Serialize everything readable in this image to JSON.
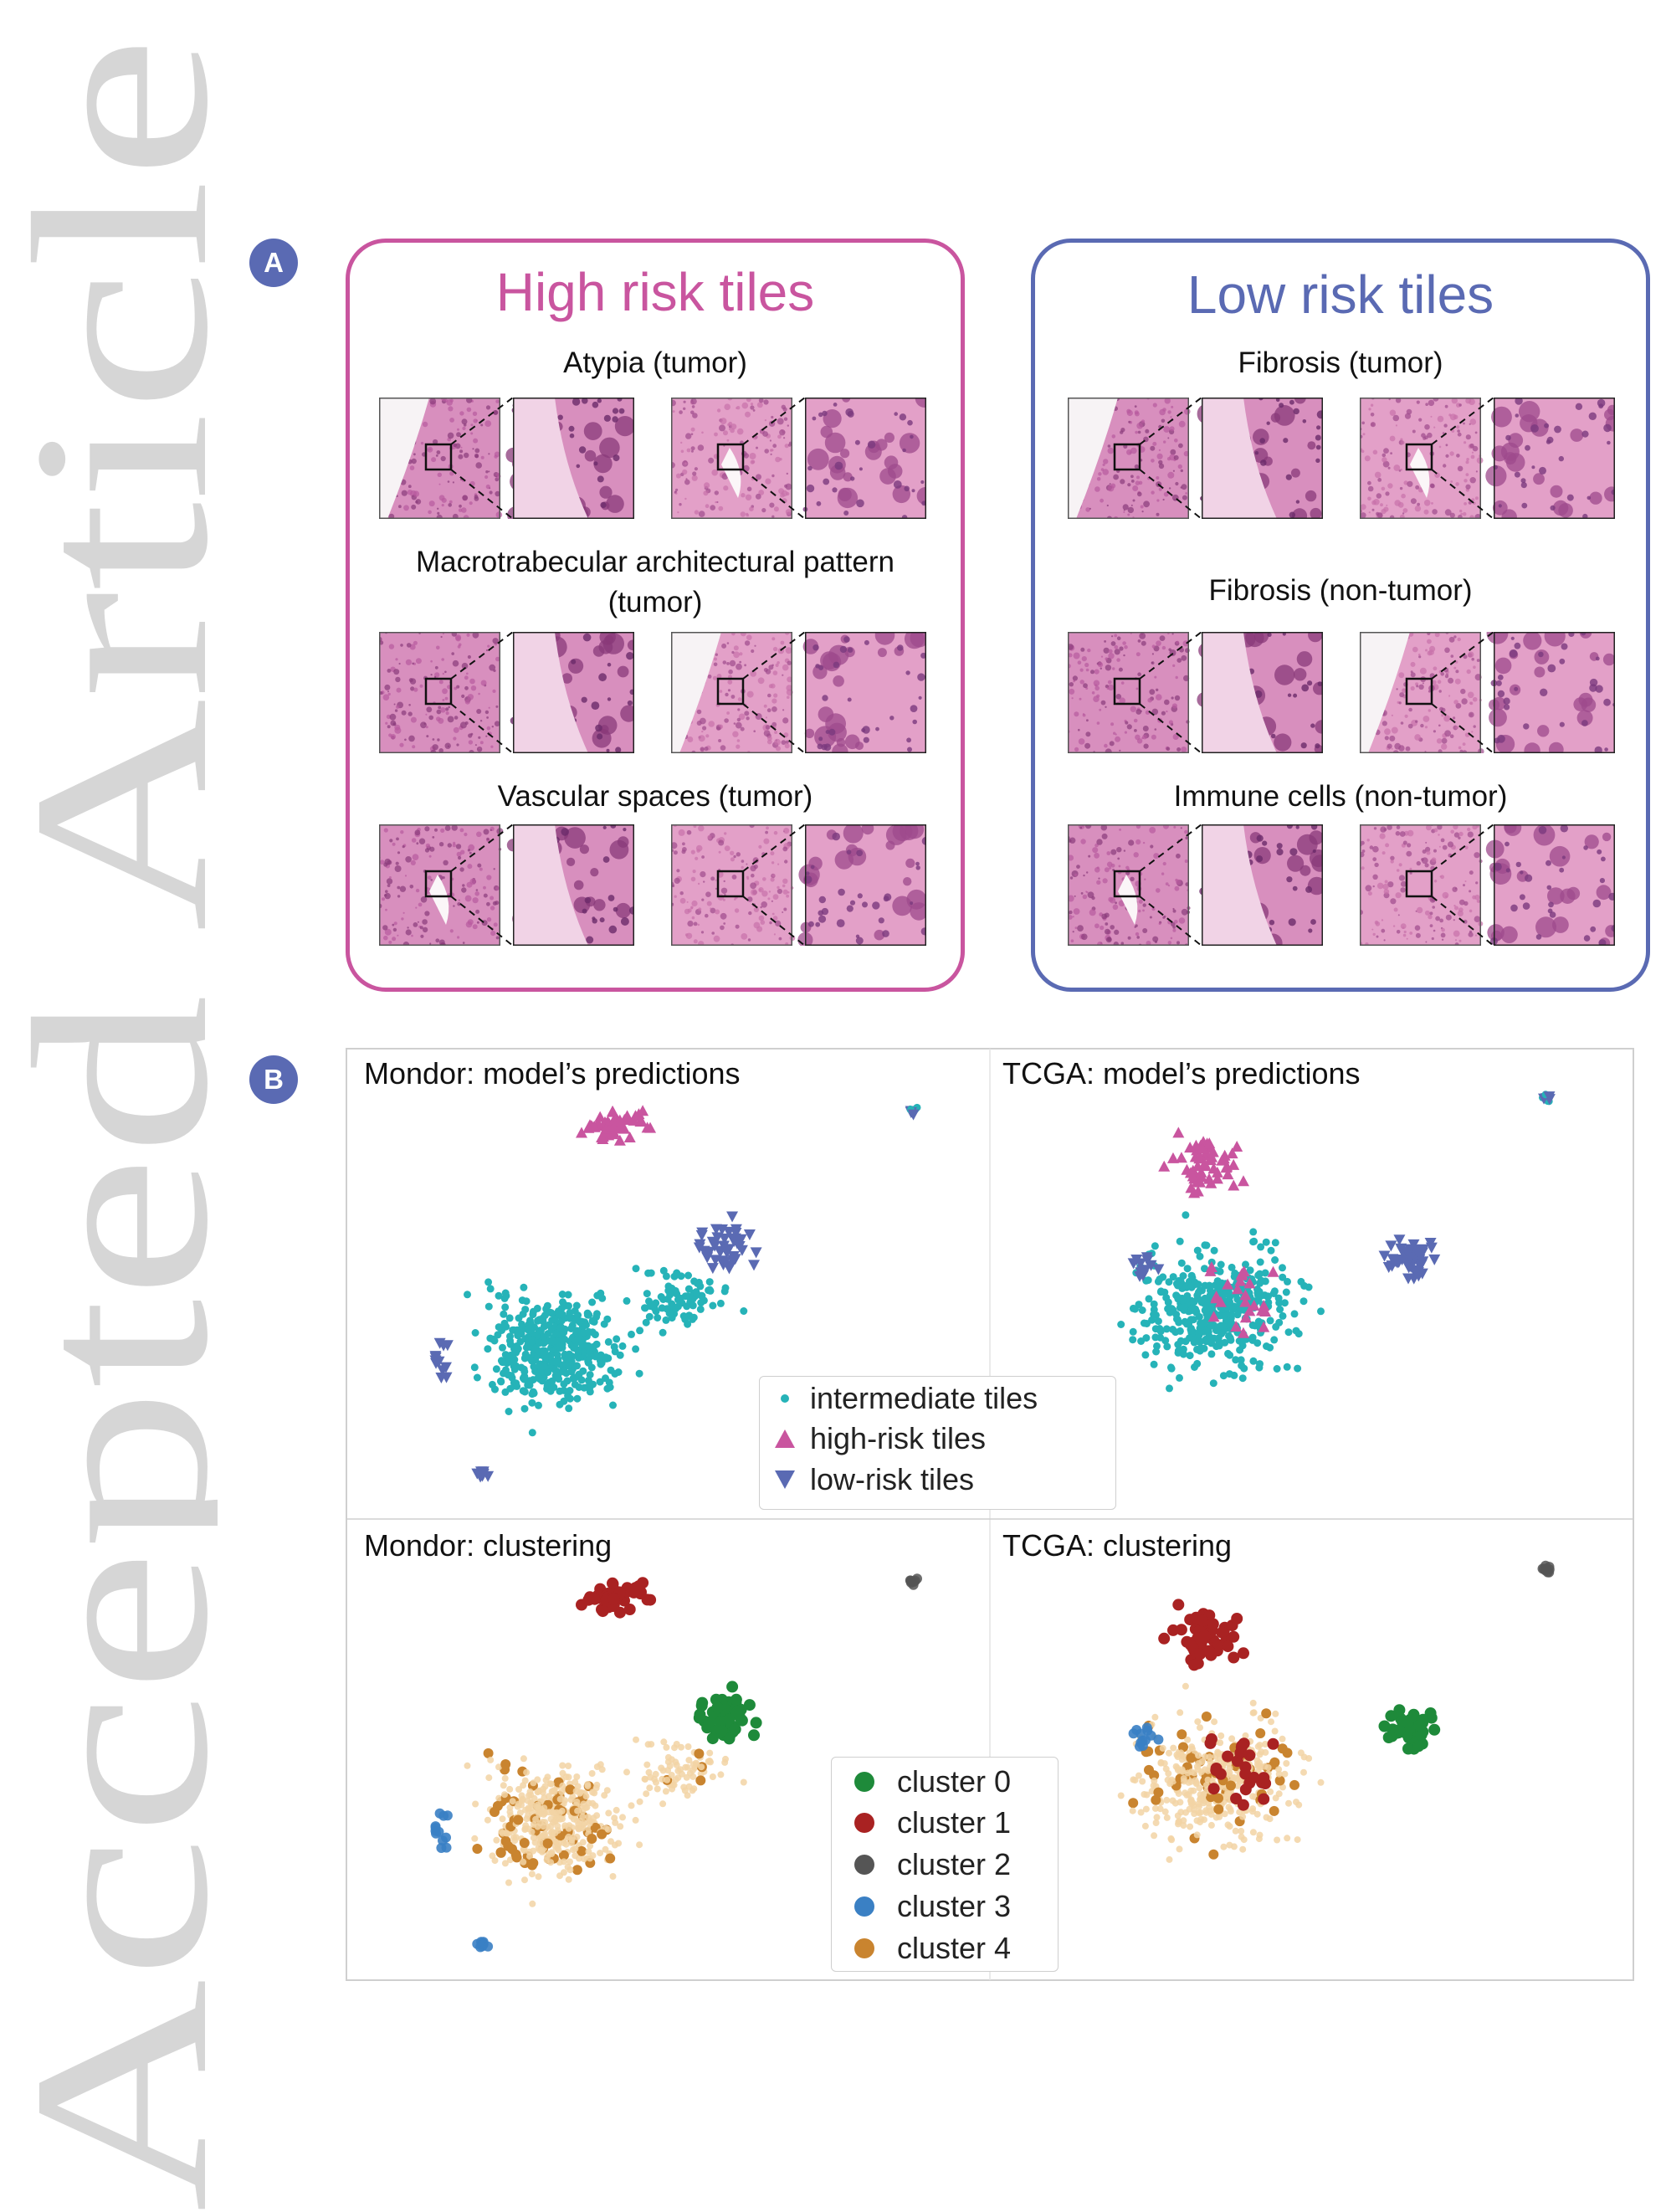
{
  "watermark": {
    "text": "Accepted Article"
  },
  "panel_a": {
    "label": "A",
    "high_risk": {
      "title": "High risk tiles",
      "color": "#c9559f",
      "rows": [
        {
          "title": "Atypia (tumor)"
        },
        {
          "title": "Macrotrabecular architectural pattern (tumor)"
        },
        {
          "title": "Vascular spaces (tumor)"
        }
      ]
    },
    "low_risk": {
      "title": "Low risk tiles",
      "color": "#5a6ab3",
      "rows": [
        {
          "title": "Fibrosis (tumor)"
        },
        {
          "title": "Fibrosis (non-tumor)"
        },
        {
          "title": "Immune cells (non-tumor)"
        }
      ]
    }
  },
  "panel_b": {
    "label": "B",
    "subplots": [
      {
        "title": "Mondor: model’s predictions"
      },
      {
        "title": "TCGA: model’s predictions"
      },
      {
        "title": "Mondor: clustering"
      },
      {
        "title": "TCGA: clustering"
      }
    ],
    "legend_predictions": [
      {
        "label": "intermediate tiles",
        "color": "#26b3b8",
        "marker": "circle-small"
      },
      {
        "label": "high-risk tiles",
        "color": "#c9559f",
        "marker": "triangle-up"
      },
      {
        "label": "low-risk tiles",
        "color": "#5a6ab3",
        "marker": "triangle-down"
      }
    ],
    "legend_clusters": [
      {
        "label": "cluster 0",
        "color": "#1e8a3a"
      },
      {
        "label": "cluster 1",
        "color": "#a92222"
      },
      {
        "label": "cluster 2",
        "color": "#555555"
      },
      {
        "label": "cluster 3",
        "color": "#3a80c4"
      },
      {
        "label": "cluster 4",
        "color": "#c9842f"
      }
    ]
  }
}
